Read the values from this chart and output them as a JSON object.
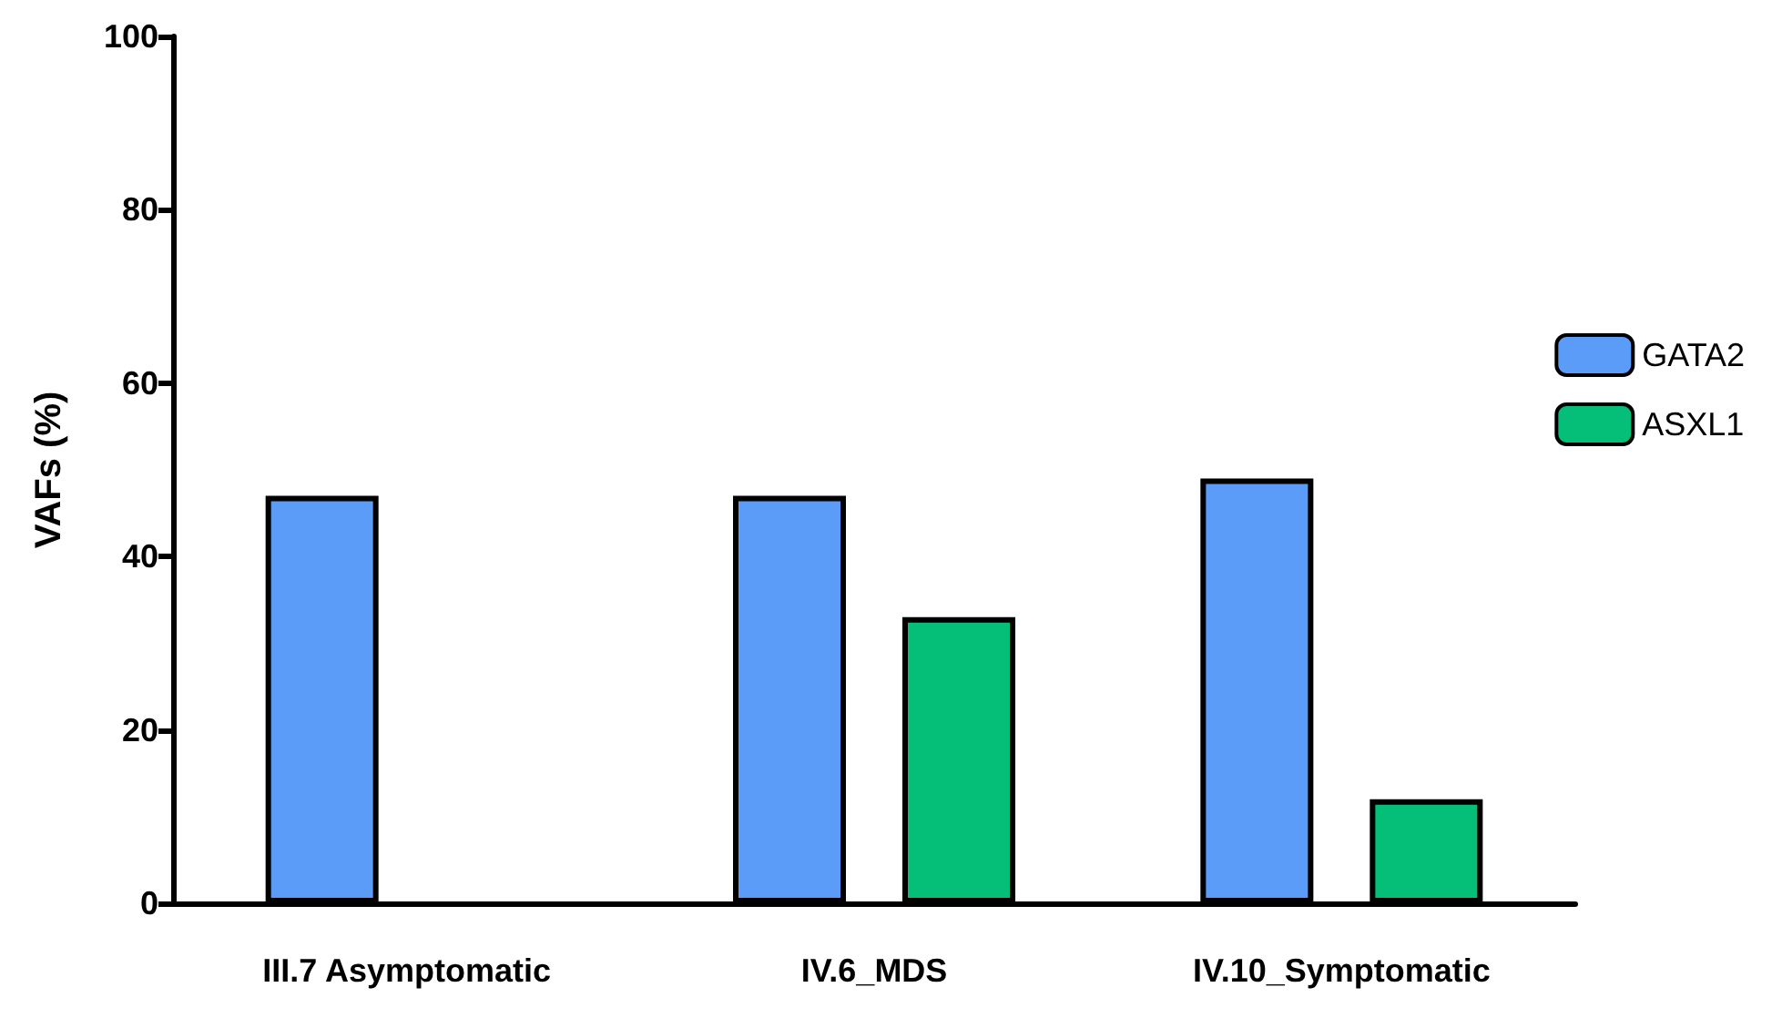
{
  "chart_data": {
    "type": "bar",
    "ylabel": "VAFs (%)",
    "categories": [
      "III.7 Asymptomatic",
      "IV.6_MDS",
      "IV.10_Symptomatic"
    ],
    "series": [
      {
        "name": "GATA2",
        "color": "#5b9cf8",
        "values": [
          47,
          47,
          49
        ]
      },
      {
        "name": "ASXL1",
        "color": "#05be78",
        "values": [
          null,
          33,
          12
        ]
      }
    ],
    "ylim": [
      0,
      100
    ],
    "yticks": [
      0,
      20,
      40,
      60,
      80,
      100
    ],
    "grid": false,
    "legend": "right"
  }
}
